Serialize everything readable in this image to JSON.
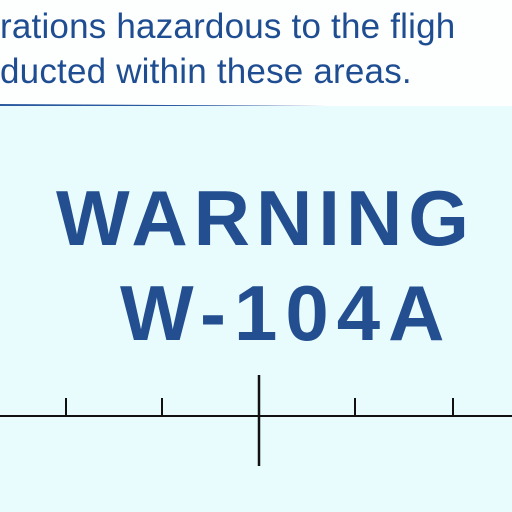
{
  "note": {
    "lines": [
      "rations hazardous to the fligh",
      "ducted within these areas."
    ]
  },
  "area_label": {
    "designation": "WARNING",
    "id": "W-104A"
  },
  "colors": {
    "ink": "#1f4d92",
    "chart_background": "#e8fbfd",
    "note_background": "#fdfefe",
    "tick_marks": "#111111"
  }
}
